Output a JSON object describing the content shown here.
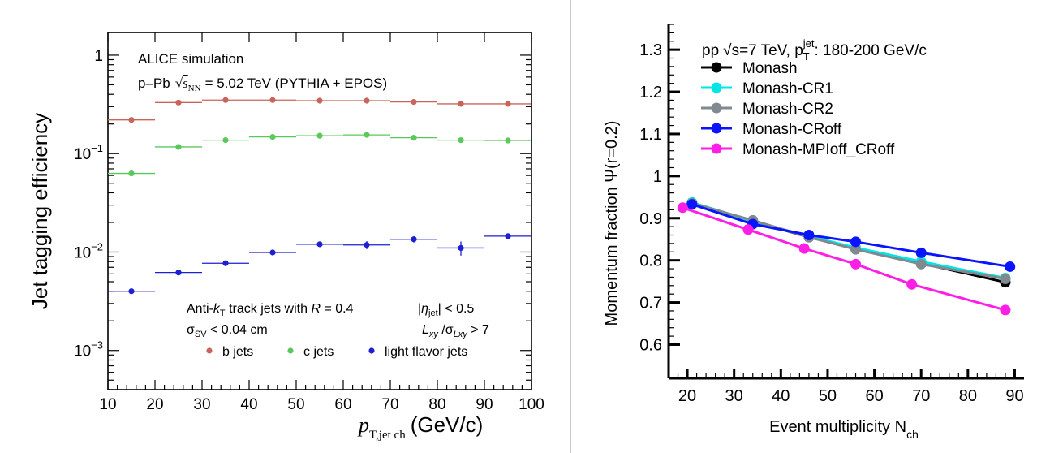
{
  "chart_data": [
    {
      "type": "scatter",
      "title": "ALICE simulation",
      "subtitle_prefix": "p–Pb",
      "subtitle_energy": "= 5.02 TeV (PYTHIA + EPOS)",
      "xlabel": "p",
      "xlabel_sub": "T,jet ch",
      "xlabel_unit": "(GeV/c)",
      "ylabel": "Jet tagging efficiency",
      "yscale": "log",
      "xlim": [
        10,
        100
      ],
      "ylim": [
        0.0004,
        1.7
      ],
      "xticks": [
        10,
        20,
        30,
        40,
        50,
        60,
        70,
        80,
        90,
        100
      ],
      "yticks": [
        {
          "base": "10",
          "exp": "−3",
          "v": 0.001
        },
        {
          "base": "10",
          "exp": "−2",
          "v": 0.01
        },
        {
          "base": "10",
          "exp": "−1",
          "v": 0.1
        },
        {
          "base": "1",
          "exp": "",
          "v": 1
        }
      ],
      "annotations": {
        "jets_prefix": "Anti-",
        "jets_k": "k",
        "jets_ksub": "T",
        "jets_mid": " track jets with ",
        "jets_R": "R",
        "jets_Rval": " = 0.4",
        "eta_bar1": "|",
        "eta": "η",
        "eta_sub": "jet",
        "eta_rest": "| < 0.5",
        "sigma": "σ",
        "sigma_sub": "SV",
        "sigma_rest": " < 0.04 cm",
        "lxy": "L",
        "lxy_sub": "xy",
        "lxy_slash": " /σ",
        "lxy_sub2": "Lxy",
        "lxy_rest": " > 7"
      },
      "series": [
        {
          "name": "b jets",
          "color": "#c8645a",
          "x": [
            15,
            25,
            35,
            45,
            55,
            65,
            75,
            85,
            95
          ],
          "y": [
            0.22,
            0.33,
            0.35,
            0.35,
            0.345,
            0.345,
            0.335,
            0.32,
            0.32
          ]
        },
        {
          "name": "c jets",
          "color": "#5ac85a",
          "x": [
            15,
            25,
            35,
            45,
            55,
            65,
            75,
            85,
            95
          ],
          "y": [
            0.063,
            0.117,
            0.137,
            0.148,
            0.152,
            0.155,
            0.145,
            0.137,
            0.136
          ]
        },
        {
          "name": "light flavor jets",
          "color": "#1e1ed2",
          "x": [
            15,
            25,
            35,
            45,
            55,
            65,
            75,
            85,
            95
          ],
          "y": [
            0.004,
            0.0062,
            0.0077,
            0.0099,
            0.012,
            0.0118,
            0.0135,
            0.011,
            0.0145
          ],
          "yerr": [
            0.0002,
            0.0004,
            0.0004,
            0.0004,
            0.0008,
            0.0011,
            0.001,
            0.0018,
            0.0006
          ]
        }
      ]
    },
    {
      "type": "line",
      "header_pp": "pp",
      "header_sqrt": "√s=7 TeV, p",
      "header_sub": "T",
      "header_sup": "jet",
      "header_rest": ": 180-200 GeV/c",
      "xlabel": "Event multiplicity N",
      "xlabel_sub": "ch",
      "ylabel": "Momentum fraction Ψ(r=0.2)",
      "xlim": [
        16,
        92
      ],
      "ylim": [
        0.52,
        1.36
      ],
      "xticks": [
        20,
        30,
        40,
        50,
        60,
        70,
        80,
        90
      ],
      "yticks": [
        0.6,
        0.7,
        0.8,
        0.9,
        1,
        1.1,
        1.2,
        1.3
      ],
      "ytick_labels": [
        "0.6",
        "0.7",
        "0.8",
        "0.9",
        "1",
        "1.1",
        "1.2",
        "1.3"
      ],
      "series": [
        {
          "name": "Monash",
          "color": "#000000",
          "x": [
            21,
            34,
            46,
            56,
            70,
            88
          ],
          "y": [
            0.937,
            0.893,
            0.855,
            0.828,
            0.793,
            0.748
          ]
        },
        {
          "name": "Monash-CR1",
          "color": "#00e5e5",
          "x": [
            21,
            34,
            46,
            56,
            70,
            88
          ],
          "y": [
            0.937,
            0.893,
            0.857,
            0.83,
            0.797,
            0.758
          ]
        },
        {
          "name": "Monash-CR2",
          "color": "#808890",
          "x": [
            21,
            34,
            46,
            56,
            70,
            88
          ],
          "y": [
            0.935,
            0.895,
            0.855,
            0.826,
            0.791,
            0.756
          ]
        },
        {
          "name": "Monash-CRoff",
          "color": "#0a14ff",
          "x": [
            21,
            34,
            46,
            56,
            70,
            89
          ],
          "y": [
            0.933,
            0.886,
            0.86,
            0.844,
            0.818,
            0.785
          ]
        },
        {
          "name": "Monash-MPIoff_CRoff",
          "color": "#ff1ee6",
          "x": [
            19,
            33,
            45,
            56,
            68,
            88
          ],
          "y": [
            0.925,
            0.873,
            0.828,
            0.791,
            0.743,
            0.682
          ]
        }
      ]
    }
  ]
}
